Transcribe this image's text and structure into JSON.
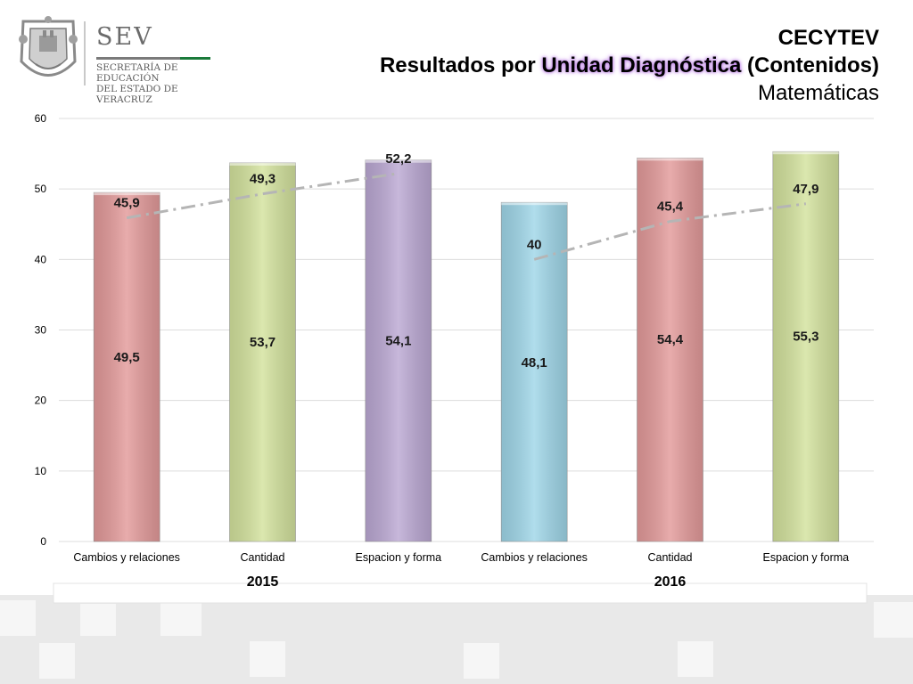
{
  "logo": {
    "sev": "SEV",
    "line1": "SECRETARÍA DE EDUCACIÓN",
    "line2": "DEL ESTADO DE VERACRUZ"
  },
  "header": {
    "title_line1": "CECYTEV",
    "title_line2_pre": "Resultados por ",
    "title_line2_hl": "Unidad Diagnóstica",
    "title_line2_post": " (Contenidos)",
    "title_line3": "Matemáticas"
  },
  "chart_data": {
    "type": "bar",
    "categories": [
      "Cambios y relaciones",
      "Cantidad",
      "Espacion y forma",
      "Cambios y relaciones",
      "Cantidad",
      "Espacion y forma"
    ],
    "values": [
      49.5,
      53.7,
      54.1,
      48.1,
      54.4,
      55.3
    ],
    "value_labels": [
      "49,5",
      "53,7",
      "54,1",
      "48,1",
      "54,4",
      "55,3"
    ],
    "bar_colors": [
      "#e39a9a",
      "#d3e29d",
      "#bba8d3",
      "#9fd6e8",
      "#e39a9a",
      "#d3e29d"
    ],
    "groups": [
      {
        "label": "2015",
        "start": 0,
        "end": 2
      },
      {
        "label": "2016",
        "start": 3,
        "end": 5
      }
    ],
    "lines": [
      {
        "indices": [
          0,
          1,
          2
        ],
        "values": [
          45.9,
          49.3,
          52.2
        ],
        "labels": [
          "45,9",
          "49,3",
          "52,2"
        ],
        "color": "#b5b5b5",
        "style": "dash-dot"
      },
      {
        "indices": [
          3,
          4,
          5
        ],
        "values": [
          40,
          45.4,
          47.9
        ],
        "labels": [
          "40",
          "45,4",
          "47,9"
        ],
        "color": "#b5b5b5",
        "style": "dash-dot"
      }
    ],
    "ylim": [
      0,
      60
    ],
    "yticks": [
      0,
      10,
      20,
      30,
      40,
      50,
      60
    ],
    "grid": true
  }
}
